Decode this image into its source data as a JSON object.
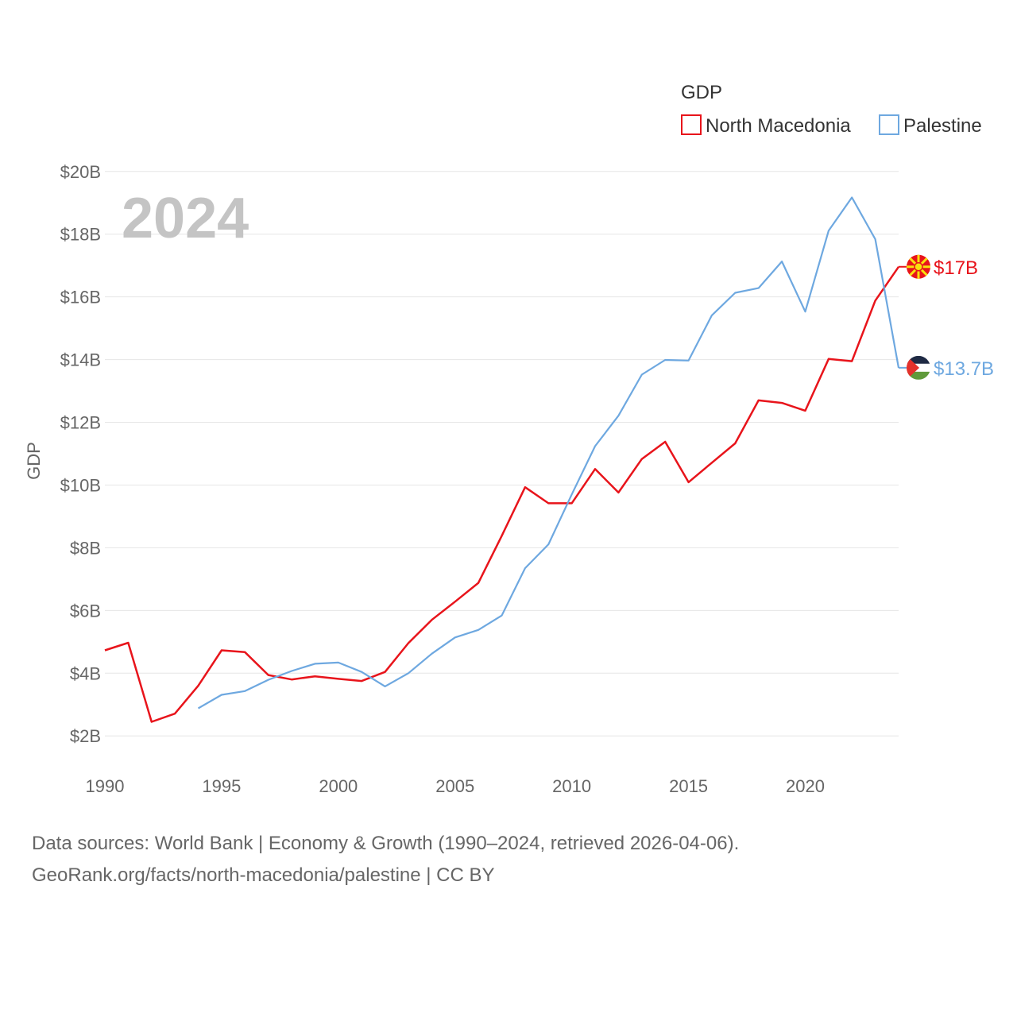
{
  "chart_data": {
    "type": "line",
    "title": "GDP",
    "year_label": "2024",
    "ylabel": "GDP",
    "xlabel": "",
    "xlim": [
      1990,
      2024
    ],
    "ylim": [
      1.6,
      20.4
    ],
    "y_ticks": [
      {
        "value": 2,
        "label": "$2B"
      },
      {
        "value": 4,
        "label": "$4B"
      },
      {
        "value": 6,
        "label": "$6B"
      },
      {
        "value": 8,
        "label": "$8B"
      },
      {
        "value": 10,
        "label": "$10B"
      },
      {
        "value": 12,
        "label": "$12B"
      },
      {
        "value": 14,
        "label": "$14B"
      },
      {
        "value": 16,
        "label": "$16B"
      },
      {
        "value": 18,
        "label": "$18B"
      },
      {
        "value": 20,
        "label": "$20B"
      }
    ],
    "x_ticks": [
      {
        "value": 1990,
        "label": "1990"
      },
      {
        "value": 1995,
        "label": "1995"
      },
      {
        "value": 2000,
        "label": "2000"
      },
      {
        "value": 2005,
        "label": "2005"
      },
      {
        "value": 2010,
        "label": "2010"
      },
      {
        "value": 2015,
        "label": "2015"
      },
      {
        "value": 2020,
        "label": "2020"
      }
    ],
    "grid": true,
    "legend_position": "top-right",
    "series": [
      {
        "name": "North Macedonia",
        "color": "#e8141b",
        "end_label": "$17B",
        "flag": "north-macedonia-flag-icon",
        "x": [
          1990,
          1991,
          1992,
          1993,
          1994,
          1995,
          1996,
          1997,
          1998,
          1999,
          2000,
          2001,
          2002,
          2003,
          2004,
          2005,
          2006,
          2007,
          2008,
          2009,
          2010,
          2011,
          2012,
          2013,
          2014,
          2015,
          2016,
          2017,
          2018,
          2019,
          2020,
          2021,
          2022,
          2023,
          2024
        ],
        "values": [
          4.73,
          4.97,
          2.45,
          2.71,
          3.6,
          4.73,
          4.67,
          3.94,
          3.8,
          3.9,
          3.82,
          3.75,
          4.04,
          4.96,
          5.7,
          6.28,
          6.88,
          8.38,
          9.93,
          9.42,
          9.42,
          10.51,
          9.76,
          10.83,
          11.38,
          10.09,
          10.71,
          11.33,
          12.7,
          12.62,
          12.37,
          14.02,
          13.95,
          15.88,
          16.96
        ]
      },
      {
        "name": "Palestine",
        "color": "#6ea8e0",
        "end_label": "$13.7B",
        "flag": "palestine-flag-icon",
        "x": [
          1994,
          1995,
          1996,
          1997,
          1998,
          1999,
          2000,
          2001,
          2002,
          2003,
          2004,
          2005,
          2006,
          2007,
          2008,
          2009,
          2010,
          2011,
          2012,
          2013,
          2014,
          2015,
          2016,
          2017,
          2018,
          2019,
          2020,
          2021,
          2022,
          2023,
          2024
        ],
        "values": [
          2.88,
          3.31,
          3.43,
          3.79,
          4.07,
          4.3,
          4.34,
          4.04,
          3.58,
          4.0,
          4.62,
          5.14,
          5.38,
          5.84,
          7.35,
          8.11,
          9.7,
          11.24,
          12.21,
          13.52,
          13.99,
          13.97,
          15.41,
          16.13,
          16.28,
          17.13,
          15.53,
          18.11,
          19.17,
          17.84,
          13.74
        ]
      }
    ]
  },
  "source": {
    "line1": "Data sources: World Bank | Economy & Growth (1990–2024, retrieved 2026-04-06).",
    "line2": "GeoRank.org/facts/north-macedonia/palestine | CC BY"
  }
}
